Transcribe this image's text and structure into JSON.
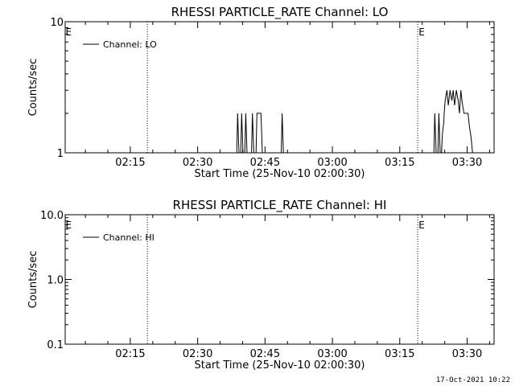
{
  "chart_data": [
    {
      "type": "line",
      "title": "RHESSI PARTICLE_RATE Channel: LO",
      "xlabel": "Start Time (25-Nov-10 02:00:30)",
      "ylabel": "Counts/sec",
      "yscale": "log",
      "ylim": [
        1,
        10
      ],
      "yticks": [
        {
          "v": 1,
          "label": "1"
        },
        {
          "v": 10,
          "label": "10"
        }
      ],
      "xlim_min": [
        0.5,
        96
      ],
      "xticks": [
        {
          "m": 15,
          "label": "02:15"
        },
        {
          "m": 30,
          "label": "02:30"
        },
        {
          "m": 45,
          "label": "02:45"
        },
        {
          "m": 60,
          "label": "03:00"
        },
        {
          "m": 75,
          "label": "03:15"
        },
        {
          "m": 90,
          "label": "03:30"
        }
      ],
      "event_lines_min": [
        18.8,
        79,
        96
      ],
      "event_markers": [
        {
          "m": 0.6,
          "label": "E"
        },
        {
          "m": 79.2,
          "label": "E"
        }
      ],
      "legend": {
        "position": "top-left",
        "entry": "Channel: LO"
      },
      "series": [
        {
          "x": [
            0.5,
            38.7,
            38.9,
            39.2,
            39.6,
            39.8,
            40.1,
            40.5,
            40.7,
            41.0,
            42.0,
            42.2,
            42.5,
            43.0,
            43.2,
            43.5,
            43.9,
            44.1,
            44.4,
            48.6,
            48.8,
            49.1,
            82.6,
            82.8,
            83.1,
            83.5,
            83.7,
            84.0,
            84.3,
            84.5,
            84.8,
            84.9,
            85.1,
            85.5,
            85.8,
            86.2,
            86.6,
            86.9,
            87.2,
            87.6,
            88.0,
            88.3,
            88.6,
            88.9,
            89.3,
            89.6,
            89.9,
            90.2,
            90.5,
            90.9,
            91.2,
            96
          ],
          "y": [
            1,
            1,
            2,
            1,
            1,
            2,
            1,
            1,
            2,
            1,
            1,
            2,
            1,
            1,
            2,
            2,
            2,
            2,
            1,
            1,
            2,
            1,
            1,
            2,
            1,
            1,
            2,
            1,
            1,
            1.4,
            1.7,
            2,
            2.5,
            3,
            2.3,
            3,
            2.5,
            3,
            2.3,
            3,
            2.5,
            2,
            3,
            2.4,
            2,
            2,
            2,
            2,
            1.6,
            1.3,
            1,
            1
          ]
        }
      ]
    },
    {
      "type": "line",
      "title": "RHESSI PARTICLE_RATE Channel: HI",
      "xlabel": "Start Time (25-Nov-10 02:00:30)",
      "ylabel": "Counts/sec",
      "yscale": "log",
      "ylim": [
        0.1,
        10
      ],
      "yticks": [
        {
          "v": 0.1,
          "label": "0.1"
        },
        {
          "v": 1,
          "label": "1.0"
        },
        {
          "v": 10,
          "label": "10.0"
        }
      ],
      "xlim_min": [
        0.5,
        96
      ],
      "xticks": [
        {
          "m": 15,
          "label": "02:15"
        },
        {
          "m": 30,
          "label": "02:30"
        },
        {
          "m": 45,
          "label": "02:45"
        },
        {
          "m": 60,
          "label": "03:00"
        },
        {
          "m": 75,
          "label": "03:15"
        },
        {
          "m": 90,
          "label": "03:30"
        }
      ],
      "event_lines_min": [
        18.8,
        79,
        96
      ],
      "event_markers": [
        {
          "m": 0.6,
          "label": "E"
        },
        {
          "m": 79.2,
          "label": "E"
        }
      ],
      "legend": {
        "position": "top-left",
        "entry": "Channel: HI"
      },
      "series": []
    }
  ],
  "footer": {
    "timestamp": "17-Oct-2021 10:22"
  }
}
